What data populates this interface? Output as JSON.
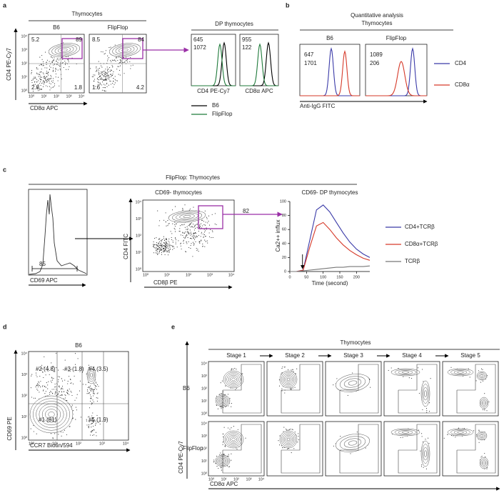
{
  "axis_ticks": [
    "10⁰",
    "10¹",
    "10²",
    "10³",
    "10⁴"
  ],
  "panel_a": {
    "letter": "a",
    "title": "Thymocytes",
    "plot_titles": [
      "B6",
      "FlipFlop"
    ],
    "y_label": "CD4 PE-Cy7",
    "x_label": "CD8α APC",
    "quadrants": [
      [
        5.2,
        89,
        2.8,
        1.8
      ],
      [
        8.5,
        84,
        1.6,
        4.2
      ]
    ],
    "hist_title": "DP thymocytes",
    "histograms": [
      {
        "x_label": "CD4 PE-Cy7",
        "values": [
          645,
          1072
        ]
      },
      {
        "x_label": "CD8α APC",
        "values": [
          955,
          122
        ]
      }
    ],
    "legend": [
      {
        "name": "B6",
        "color": "#000000"
      },
      {
        "name": "FlipFlop",
        "color": "#1e7a3a"
      }
    ]
  },
  "panel_b": {
    "letter": "b",
    "title": "Quantitative analysis",
    "subtitle": "Thymocytes",
    "plot_titles": [
      "B6",
      "FlipFlop"
    ],
    "x_label": "Anti-IgG FITC",
    "plots": [
      [
        647,
        1701
      ],
      [
        1089,
        206
      ]
    ],
    "legend": [
      {
        "name": "CD4",
        "color": "#3a3aa8"
      },
      {
        "name": "CD8α",
        "color": "#d63a2a"
      }
    ]
  },
  "panel_c": {
    "letter": "c",
    "title": "FlipFlop: Thymocytes",
    "hist_x_label": "CD69 APC",
    "hist_gate": 85,
    "scatter_title": "CD69- thymocytes",
    "scatter_y_label": "CD4 FITC",
    "scatter_x_label": "CD8β PE",
    "scatter_gate": 82,
    "calcium": {
      "type": "line",
      "title": "CD69- DP thymocytes",
      "x_label": "Time (second)",
      "y_label": "Ca2++ influx",
      "x": [
        0,
        20,
        40,
        60,
        80,
        100,
        120,
        140,
        160,
        180,
        200,
        220,
        240
      ],
      "xlim": [
        0,
        240
      ],
      "xticks": [
        0,
        50,
        100,
        150,
        200
      ],
      "ylim": [
        0,
        100
      ],
      "yticks": [
        0,
        20,
        40,
        60,
        80,
        100
      ],
      "series": [
        {
          "name": "CD4+TCRβ",
          "color": "#3a3aa8",
          "values": [
            0,
            0,
            2,
            45,
            88,
            95,
            85,
            70,
            55,
            42,
            32,
            25,
            20
          ]
        },
        {
          "name": "CD8α+TCRβ",
          "color": "#d63a2a",
          "values": [
            0,
            0,
            2,
            35,
            65,
            70,
            60,
            48,
            38,
            30,
            24,
            19,
            16
          ]
        },
        {
          "name": "TCRβ",
          "color": "#777777",
          "values": [
            0,
            0,
            1,
            2,
            3,
            4,
            5,
            6,
            6,
            7,
            7,
            7,
            8
          ]
        }
      ]
    }
  },
  "panel_d": {
    "letter": "d",
    "title": "B6",
    "y_label": "CD69 PE",
    "x_label": "CCR7 Biotin/594",
    "gates": [
      "#2 (4.8)",
      "#3 (1.8)",
      "#4 (3.5)",
      "#1 (81)",
      "#5 (1.9)"
    ]
  },
  "panel_e": {
    "letter": "e",
    "title": "Thymocytes",
    "stages": [
      "Stage 1",
      "Stage 2",
      "Stage 3",
      "Stage 4",
      "Stage 5"
    ],
    "rows": [
      "B6",
      "FlipFlop"
    ],
    "y_label": "CD4 PE-Cy7",
    "x_label": "CD8α APC"
  }
}
